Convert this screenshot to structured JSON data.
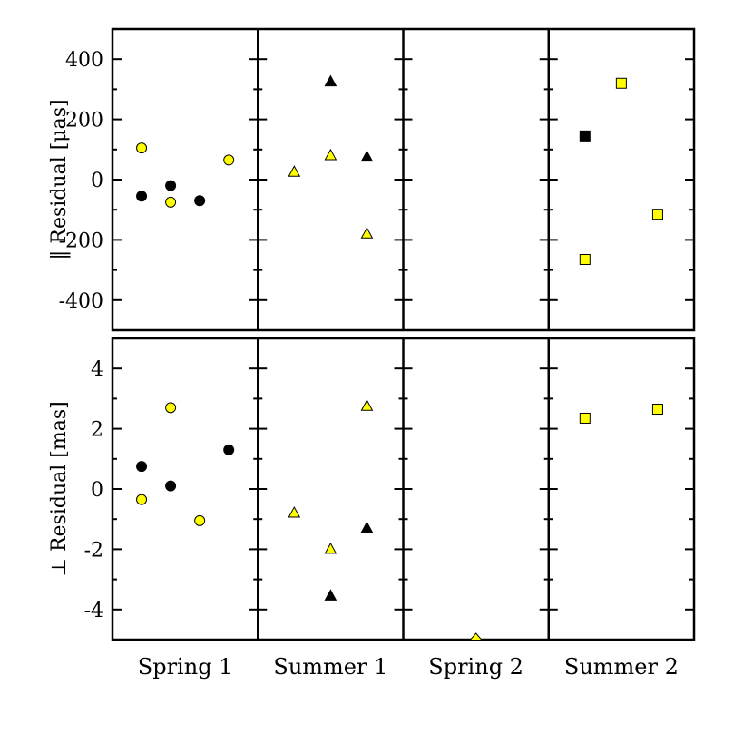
{
  "chart_data": {
    "type": "scatter",
    "categories": [
      "Spring 1",
      "Summer 1",
      "Spring 2",
      "Summer 2"
    ],
    "panels": [
      {
        "ylabel": "‖ Residual [μas]",
        "ylim": [
          -500,
          500
        ],
        "yticks": [
          -400,
          -200,
          0,
          200,
          400
        ],
        "series": [
          {
            "category": "Spring 1",
            "marker": "circle",
            "color": "#ffff00",
            "edge": "#000000",
            "x": [
              0.2,
              0.4,
              0.8
            ],
            "y": [
              105,
              -75,
              65
            ]
          },
          {
            "category": "Spring 1",
            "marker": "circle",
            "color": "#000000",
            "edge": "#000000",
            "x": [
              0.2,
              0.4,
              0.6
            ],
            "y": [
              -55,
              -20,
              -70
            ]
          },
          {
            "category": "Summer 1",
            "marker": "triangle",
            "color": "#ffff00",
            "edge": "#000000",
            "x": [
              0.25,
              0.5,
              0.75
            ],
            "y": [
              25,
              80,
              -180
            ]
          },
          {
            "category": "Summer 1",
            "marker": "triangle",
            "color": "#000000",
            "edge": "#000000",
            "x": [
              0.5,
              0.75
            ],
            "y": [
              325,
              75
            ]
          },
          {
            "category": "Summer 2",
            "marker": "square",
            "color": "#ffff00",
            "edge": "#000000",
            "x": [
              0.25,
              0.5,
              0.75
            ],
            "y": [
              -265,
              320,
              -115
            ]
          },
          {
            "category": "Summer 2",
            "marker": "square",
            "color": "#000000",
            "edge": "#000000",
            "x": [
              0.25
            ],
            "y": [
              145
            ]
          }
        ]
      },
      {
        "ylabel": "⊥ Residual [mas]",
        "ylim": [
          -5,
          5
        ],
        "yticks": [
          -4,
          -2,
          0,
          2,
          4
        ],
        "series": [
          {
            "category": "Spring 1",
            "marker": "circle",
            "color": "#ffff00",
            "edge": "#000000",
            "x": [
              0.2,
              0.4,
              0.6
            ],
            "y": [
              -0.35,
              2.7,
              -1.05
            ]
          },
          {
            "category": "Spring 1",
            "marker": "circle",
            "color": "#000000",
            "edge": "#000000",
            "x": [
              0.2,
              0.4,
              0.8
            ],
            "y": [
              0.75,
              0.1,
              1.3
            ]
          },
          {
            "category": "Summer 1",
            "marker": "triangle",
            "color": "#ffff00",
            "edge": "#000000",
            "x": [
              0.25,
              0.5,
              0.75
            ],
            "y": [
              -0.8,
              -2.0,
              2.75
            ]
          },
          {
            "category": "Summer 1",
            "marker": "triangle",
            "color": "#000000",
            "edge": "#000000",
            "x": [
              0.5,
              0.75
            ],
            "y": [
              -3.55,
              -1.3
            ]
          },
          {
            "category": "Spring 2",
            "marker": "diamond",
            "color": "#ffff00",
            "edge": "#000000",
            "x": [
              0.5
            ],
            "y": [
              -5.0
            ]
          },
          {
            "category": "Summer 2",
            "marker": "square",
            "color": "#ffff00",
            "edge": "#000000",
            "x": [
              0.25,
              0.75
            ],
            "y": [
              2.35,
              2.65
            ]
          }
        ]
      }
    ],
    "grid": false,
    "legend": "none"
  }
}
